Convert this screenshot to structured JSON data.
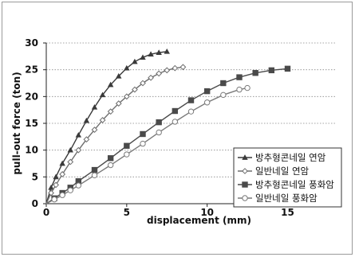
{
  "chart_data": {
    "type": "line",
    "xlabel": "displacement (mm)",
    "ylabel": "pull-out force (ton)",
    "xlim": [
      0,
      18
    ],
    "ylim": [
      0,
      30
    ],
    "x_ticks": [
      0,
      5,
      10,
      15
    ],
    "y_ticks": [
      0,
      5,
      10,
      15,
      20,
      25,
      30
    ],
    "grid": "horizontal dotted",
    "legend_position": "lower-right",
    "series": [
      {
        "name": "방추형콘네일 연암",
        "marker": "triangle",
        "color": "#3a3a3a",
        "x": [
          0,
          0.3,
          0.6,
          1.0,
          1.5,
          2.0,
          2.5,
          3.0,
          3.5,
          4.0,
          4.5,
          5.0,
          5.5,
          6.0,
          6.5,
          7.0,
          7.5
        ],
        "y": [
          0,
          3.0,
          5.0,
          7.5,
          10.0,
          12.8,
          15.5,
          18.0,
          20.3,
          22.2,
          23.8,
          25.3,
          26.5,
          27.3,
          27.9,
          28.2,
          28.4
        ]
      },
      {
        "name": "일반네일 연암",
        "marker": "diamond-open",
        "color": "#6e6e6e",
        "x": [
          0,
          0.3,
          0.6,
          1.0,
          1.5,
          2.0,
          2.5,
          3.0,
          3.5,
          4.0,
          4.5,
          5.0,
          5.5,
          6.0,
          6.5,
          7.0,
          7.5,
          8.0,
          8.5
        ],
        "y": [
          0,
          2.0,
          3.5,
          5.5,
          7.8,
          10.0,
          12.0,
          13.8,
          15.6,
          17.2,
          18.7,
          20.0,
          21.3,
          22.5,
          23.5,
          24.3,
          24.9,
          25.3,
          25.5
        ]
      },
      {
        "name": "방추형콘네일 풍화암",
        "marker": "square",
        "color": "#4a4a4a",
        "x": [
          0,
          0.5,
          1.0,
          1.5,
          2.0,
          3.0,
          4.0,
          5.0,
          6.0,
          7.0,
          8.0,
          9.0,
          10.0,
          11.0,
          12.0,
          13.0,
          14.0,
          15.0
        ],
        "y": [
          0,
          1.0,
          2.0,
          3.0,
          4.2,
          6.3,
          8.5,
          10.8,
          13.0,
          15.2,
          17.3,
          19.3,
          21.0,
          22.5,
          23.6,
          24.4,
          24.9,
          25.2
        ]
      },
      {
        "name": "일반네일 풍화암",
        "marker": "circle-open",
        "color": "#7a7a7a",
        "x": [
          0,
          0.5,
          1.0,
          1.5,
          2.0,
          3.0,
          4.0,
          5.0,
          6.0,
          7.0,
          8.0,
          9.0,
          10.0,
          11.0,
          12.0,
          12.5
        ],
        "y": [
          0,
          0.8,
          1.6,
          2.5,
          3.4,
          5.3,
          7.2,
          9.2,
          11.2,
          13.3,
          15.3,
          17.2,
          18.9,
          20.3,
          21.3,
          21.6
        ]
      }
    ]
  }
}
